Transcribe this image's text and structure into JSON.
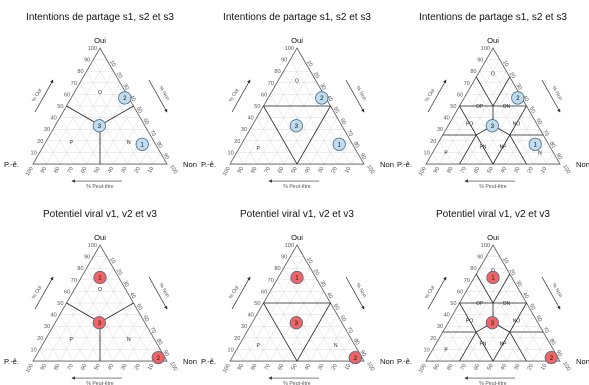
{
  "chart_data": [
    {
      "type": "ternary",
      "title": "Intentions de partage s1, s2 et s3",
      "vertices": {
        "top": "Oui",
        "left": "P.-ê.",
        "right": "Non"
      },
      "axis_labels": {
        "left": "% Oui",
        "right": "% Non",
        "bottom": "% Peut-être"
      },
      "ticks": [
        "10",
        "20",
        "30",
        "40",
        "50",
        "60",
        "70",
        "80",
        "90",
        "100"
      ],
      "grid": true,
      "partition": "three",
      "zones": [
        "P",
        "O",
        "N"
      ],
      "color": "#bfdcf0",
      "points": [
        {
          "label": "1",
          "oui": 17,
          "non": 73,
          "peut_etre": 10
        },
        {
          "label": "2",
          "oui": 57,
          "non": 40,
          "peut_etre": 3
        },
        {
          "label": "3",
          "oui": 33,
          "non": 33,
          "peut_etre": 34
        }
      ]
    },
    {
      "type": "ternary",
      "title": "Intentions de partage s1, s2 et s3",
      "vertices": {
        "top": "Oui",
        "left": "P.-ê.",
        "right": "Non"
      },
      "axis_labels": {
        "left": "% Oui",
        "right": "% Non",
        "bottom": "% Peut-être"
      },
      "ticks": [
        "10",
        "20",
        "30",
        "40",
        "50",
        "60",
        "70",
        "80",
        "90",
        "100"
      ],
      "grid": true,
      "partition": "majority",
      "zones": [
        "P",
        "O"
      ],
      "color": "#bfdcf0",
      "points": [
        {
          "label": "1",
          "oui": 17,
          "non": 73,
          "peut_etre": 10
        },
        {
          "label": "2",
          "oui": 57,
          "non": 40,
          "peut_etre": 3
        },
        {
          "label": "3",
          "oui": 33,
          "non": 33,
          "peut_etre": 34
        }
      ]
    },
    {
      "type": "ternary",
      "title": "Intentions de partage s1, s2 et s3",
      "vertices": {
        "top": "Oui",
        "left": "P.-ê.",
        "right": "Non"
      },
      "axis_labels": {
        "left": "% Oui",
        "right": "% Non",
        "bottom": "% Peut-être"
      },
      "ticks": [
        "10",
        "20",
        "30",
        "40",
        "50",
        "60",
        "70",
        "80",
        "90",
        "100"
      ],
      "grid": true,
      "partition": "seven",
      "zones": [
        "O",
        "OP",
        "ON",
        "PO",
        "NO",
        "P",
        "PN",
        "NP",
        "N"
      ],
      "color": "#bfdcf0",
      "points": [
        {
          "label": "1",
          "oui": 17,
          "non": 73,
          "peut_etre": 10
        },
        {
          "label": "2",
          "oui": 57,
          "non": 40,
          "peut_etre": 3
        },
        {
          "label": "3",
          "oui": 33,
          "non": 33,
          "peut_etre": 34
        }
      ]
    },
    {
      "type": "ternary",
      "title": "Potentiel viral v1, v2 et v3",
      "vertices": {
        "top": "Oui",
        "left": "P.-ê.",
        "right": "Non"
      },
      "axis_labels": {
        "left": "% Oui",
        "right": "% Non",
        "bottom": "% Peut-être"
      },
      "ticks": [
        "10",
        "20",
        "30",
        "40",
        "50",
        "60",
        "70",
        "80",
        "90",
        "100"
      ],
      "grid": true,
      "partition": "three",
      "zones": [
        "O",
        "P",
        "N"
      ],
      "color": "#f06464",
      "points": [
        {
          "label": "1",
          "oui": 72,
          "non": 14,
          "peut_etre": 14
        },
        {
          "label": "2",
          "oui": 3,
          "non": 92,
          "peut_etre": 5
        },
        {
          "label": "3",
          "oui": 33,
          "non": 33,
          "peut_etre": 34
        }
      ]
    },
    {
      "type": "ternary",
      "title": "Potentiel viral v1, v2 et v3",
      "vertices": {
        "top": "Oui",
        "left": "P.-ê.",
        "right": "Non"
      },
      "axis_labels": {
        "left": "% Oui",
        "right": "% Non",
        "bottom": "% Peut-être"
      },
      "ticks": [
        "10",
        "20",
        "30",
        "40",
        "50",
        "60",
        "70",
        "80",
        "90",
        "100"
      ],
      "grid": true,
      "partition": "majority",
      "zones": [
        "O",
        "P",
        "N"
      ],
      "color": "#f06464",
      "points": [
        {
          "label": "1",
          "oui": 72,
          "non": 14,
          "peut_etre": 14
        },
        {
          "label": "2",
          "oui": 3,
          "non": 92,
          "peut_etre": 5
        },
        {
          "label": "3",
          "oui": 33,
          "non": 33,
          "peut_etre": 34
        }
      ]
    },
    {
      "type": "ternary",
      "title": "Potentiel viral v1, v2 et v3",
      "vertices": {
        "top": "Oui",
        "left": "P.-ê.",
        "right": "Non"
      },
      "axis_labels": {
        "left": "% Oui",
        "right": "% Non",
        "bottom": "% Peut-être"
      },
      "ticks": [
        "10",
        "20",
        "30",
        "40",
        "50",
        "60",
        "70",
        "80",
        "90",
        "100"
      ],
      "grid": true,
      "partition": "seven",
      "zones": [
        "O",
        "OP",
        "ON",
        "PO",
        "NO",
        "P",
        "PN",
        "NP"
      ],
      "color": "#f06464",
      "points": [
        {
          "label": "1",
          "oui": 72,
          "non": 14,
          "peut_etre": 14
        },
        {
          "label": "2",
          "oui": 3,
          "non": 92,
          "peut_etre": 5
        },
        {
          "label": "3",
          "oui": 33,
          "non": 33,
          "peut_etre": 34
        }
      ]
    }
  ]
}
